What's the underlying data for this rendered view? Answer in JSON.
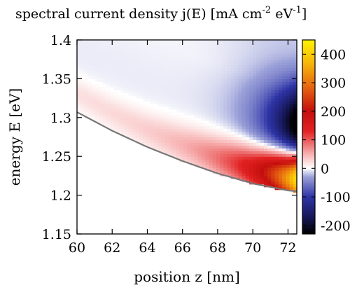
{
  "chart_data": {
    "type": "heatmap",
    "title_parts": {
      "main": "spectral current density j(E) [mA cm",
      "exp1": "-2",
      "mid": " eV",
      "exp2": "-1",
      "end": "]"
    },
    "xlabel": "position z [nm]",
    "ylabel": "energy E [eV]",
    "xlim": [
      60,
      72.5
    ],
    "ylim": [
      1.15,
      1.4
    ],
    "xticks": [
      "60",
      "62",
      "64",
      "66",
      "68",
      "70",
      "72"
    ],
    "yticks": [
      "1.4",
      "1.35",
      "1.3",
      "1.25",
      "1.2",
      "1.15"
    ],
    "colorbar": {
      "range": [
        -230,
        450
      ],
      "ticks": [
        "400",
        "300",
        "200",
        "100",
        "0",
        "-100",
        "-200"
      ],
      "stops": [
        {
          "v": -230,
          "color": "#000000"
        },
        {
          "v": -170,
          "color": "#17185a"
        },
        {
          "v": -100,
          "color": "#2e34a6"
        },
        {
          "v": -30,
          "color": "#9aa0d8"
        },
        {
          "v": 0,
          "color": "#ffffff"
        },
        {
          "v": 50,
          "color": "#f7b0b0"
        },
        {
          "v": 130,
          "color": "#e22222"
        },
        {
          "v": 200,
          "color": "#c40e0e"
        },
        {
          "v": 290,
          "color": "#e86a10"
        },
        {
          "v": 370,
          "color": "#f7b70a"
        },
        {
          "v": 450,
          "color": "#fff200"
        }
      ]
    },
    "band_edge": {
      "z": [
        60,
        62,
        64,
        66,
        68,
        70,
        72,
        72.5
      ],
      "E": [
        1.307,
        1.283,
        1.262,
        1.244,
        1.228,
        1.215,
        1.206,
        1.205
      ]
    },
    "extrema": {
      "max_z": 72.3,
      "max_E": 1.227,
      "max_value": 450,
      "min_z": 72.2,
      "min_E": 1.29,
      "min_value": -230
    }
  }
}
